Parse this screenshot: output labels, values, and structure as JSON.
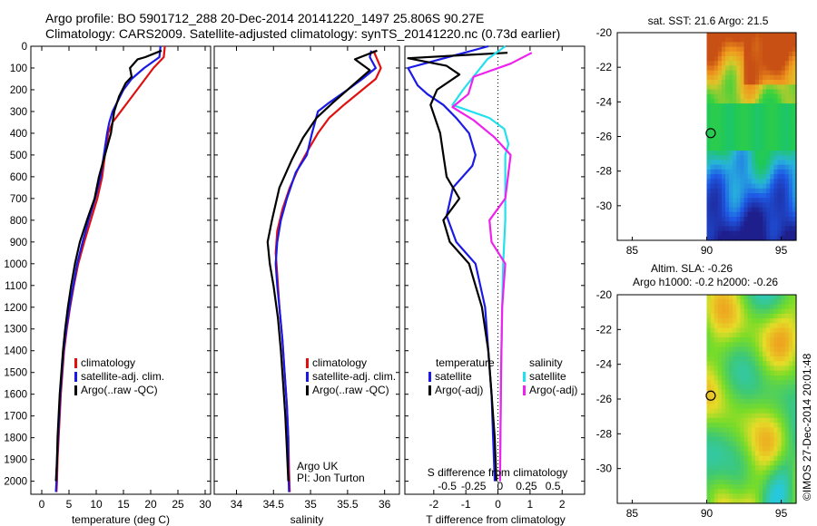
{
  "header": {
    "line1": "Argo profile: BO 5901712_288 20-Dec-2014 20141220_1497 25.806S 90.27E",
    "line2": "Climatology: CARS2009. Satellite-adjusted climatology: synTS_20141220.nc (0.73d earlier)"
  },
  "credit": "©IMOS 27-Dec-2014 20:01:48",
  "colors": {
    "climatology": "#e01010",
    "satellite": "#1a1ae6",
    "argo": "#000000",
    "satellite_diff": "#22e0ee",
    "argo_diff": "#ee22ee"
  },
  "chart_data": [
    {
      "type": "line",
      "name": "temperature-profile",
      "xlabel": "temperature (deg C)",
      "ylabel": "",
      "xlim": [
        -2,
        31
      ],
      "ylim": [
        2060,
        0
      ],
      "xticks": [
        "0",
        "5",
        "10",
        "15",
        "20",
        "25",
        "30"
      ],
      "yticks": [
        "0",
        "100",
        "200",
        "300",
        "400",
        "500",
        "600",
        "700",
        "800",
        "900",
        "1000",
        "1100",
        "1200",
        "1300",
        "1400",
        "1500",
        "1600",
        "1700",
        "1800",
        "1900",
        "2000"
      ],
      "legend": [
        "climatology",
        "satellite-adj. clim.",
        "Argo(..raw -QC)"
      ],
      "series": [
        {
          "name": "climatology",
          "points": [
            [
              22.6,
              0
            ],
            [
              22.4,
              50
            ],
            [
              20.5,
              100
            ],
            [
              19,
              150
            ],
            [
              17.5,
              200
            ],
            [
              16,
              250
            ],
            [
              14.5,
              300
            ],
            [
              13,
              350
            ],
            [
              12.2,
              400
            ],
            [
              11.6,
              500
            ],
            [
              11.1,
              600
            ],
            [
              10.2,
              700
            ],
            [
              9,
              800
            ],
            [
              7.8,
              900
            ],
            [
              6.7,
              1000
            ],
            [
              5.9,
              1100
            ],
            [
              5.2,
              1200
            ],
            [
              4.6,
              1300
            ],
            [
              4.1,
              1400
            ],
            [
              3.8,
              1500
            ],
            [
              3.5,
              1600
            ],
            [
              3.3,
              1700
            ],
            [
              3.1,
              1800
            ],
            [
              2.9,
              1900
            ],
            [
              2.8,
              2000
            ],
            [
              2.7,
              2050
            ]
          ]
        },
        {
          "name": "satellite-adj. clim.",
          "points": [
            [
              21.8,
              0
            ],
            [
              21.6,
              50
            ],
            [
              18.8,
              100
            ],
            [
              16.5,
              150
            ],
            [
              15,
              200
            ],
            [
              14,
              250
            ],
            [
              13,
              300
            ],
            [
              12.4,
              350
            ],
            [
              12,
              400
            ],
            [
              11.4,
              500
            ],
            [
              10.8,
              600
            ],
            [
              9.8,
              700
            ],
            [
              8.6,
              800
            ],
            [
              7.5,
              900
            ],
            [
              6.5,
              1000
            ],
            [
              5.8,
              1100
            ],
            [
              5.1,
              1200
            ],
            [
              4.5,
              1300
            ],
            [
              4,
              1400
            ],
            [
              3.7,
              1500
            ],
            [
              3.4,
              1600
            ],
            [
              3.2,
              1700
            ],
            [
              3,
              1800
            ],
            [
              2.8,
              1900
            ],
            [
              2.7,
              2000
            ],
            [
              2.6,
              2050
            ]
          ]
        },
        {
          "name": "Argo(..raw -QC)",
          "points": [
            [
              22,
              20
            ],
            [
              21,
              30
            ],
            [
              19,
              50
            ],
            [
              17.6,
              60
            ],
            [
              16.2,
              100
            ],
            [
              16.5,
              140
            ],
            [
              15.4,
              170
            ],
            [
              14.2,
              230
            ],
            [
              13.3,
              300
            ],
            [
              12.7,
              400
            ],
            [
              11.6,
              500
            ],
            [
              10.5,
              600
            ],
            [
              9.7,
              700
            ],
            [
              8.3,
              800
            ],
            [
              7,
              900
            ],
            [
              6.1,
              1000
            ],
            [
              5.4,
              1100
            ],
            [
              4.8,
              1200
            ],
            [
              4.3,
              1300
            ],
            [
              3.9,
              1400
            ],
            [
              3.6,
              1500
            ],
            [
              3.3,
              1600
            ],
            [
              3.1,
              1700
            ],
            [
              2.9,
              1800
            ],
            [
              2.8,
              1900
            ],
            [
              2.6,
              2000
            ]
          ]
        }
      ]
    },
    {
      "type": "line",
      "name": "salinity-profile",
      "xlabel": "salinity",
      "xlim": [
        33.7,
        36.2
      ],
      "ylim": [
        2060,
        0
      ],
      "xticks": [
        "34",
        "34.5",
        "35",
        "35.5",
        "36"
      ],
      "legend": [
        "climatology",
        "satellite-adj. clim.",
        "Argo(..raw -QC)"
      ],
      "annotation": [
        "Argo UK",
        "PI: Jon Turton"
      ],
      "series": [
        {
          "name": "climatology",
          "points": [
            [
              35.85,
              20
            ],
            [
              35.9,
              60
            ],
            [
              35.95,
              100
            ],
            [
              35.88,
              150
            ],
            [
              35.7,
              200
            ],
            [
              35.45,
              270
            ],
            [
              35.25,
              330
            ],
            [
              35.1,
              400
            ],
            [
              34.98,
              470
            ],
            [
              34.85,
              550
            ],
            [
              34.72,
              650
            ],
            [
              34.62,
              750
            ],
            [
              34.55,
              850
            ],
            [
              34.53,
              950
            ],
            [
              34.55,
              1050
            ],
            [
              34.58,
              1200
            ],
            [
              34.62,
              1350
            ],
            [
              34.65,
              1500
            ],
            [
              34.68,
              1650
            ],
            [
              34.7,
              1800
            ],
            [
              34.71,
              1950
            ],
            [
              34.72,
              2050
            ]
          ]
        },
        {
          "name": "satellite-adj. clim.",
          "points": [
            [
              35.82,
              20
            ],
            [
              35.8,
              50
            ],
            [
              35.88,
              100
            ],
            [
              35.7,
              150
            ],
            [
              35.5,
              200
            ],
            [
              35.25,
              260
            ],
            [
              35.1,
              300
            ],
            [
              35.02,
              400
            ],
            [
              34.95,
              500
            ],
            [
              34.8,
              580
            ],
            [
              34.68,
              700
            ],
            [
              34.6,
              800
            ],
            [
              34.55,
              900
            ],
            [
              34.53,
              1000
            ],
            [
              34.55,
              1100
            ],
            [
              34.58,
              1200
            ],
            [
              34.62,
              1350
            ],
            [
              34.65,
              1500
            ],
            [
              34.68,
              1650
            ],
            [
              34.7,
              1800
            ],
            [
              34.7,
              1950
            ],
            [
              34.71,
              2050
            ]
          ]
        },
        {
          "name": "Argo(..raw -QC)",
          "points": [
            [
              35.9,
              20
            ],
            [
              35.6,
              60
            ],
            [
              35.8,
              110
            ],
            [
              35.6,
              170
            ],
            [
              35.3,
              260
            ],
            [
              35.08,
              330
            ],
            [
              34.9,
              420
            ],
            [
              34.75,
              520
            ],
            [
              34.58,
              650
            ],
            [
              34.48,
              800
            ],
            [
              34.42,
              900
            ],
            [
              34.45,
              1000
            ],
            [
              34.5,
              1100
            ],
            [
              34.56,
              1250
            ],
            [
              34.6,
              1400
            ],
            [
              34.63,
              1550
            ],
            [
              34.66,
              1700
            ],
            [
              34.68,
              1850
            ],
            [
              34.7,
              2000
            ]
          ]
        }
      ]
    },
    {
      "type": "line",
      "name": "difference-from-climatology",
      "xlabel": "T difference from climatology",
      "xlabel2": "S difference from climatology",
      "xlim": [
        -2.9,
        2.7
      ],
      "xticks": [
        "-2",
        "-1",
        "0",
        "1",
        "2"
      ],
      "xlim2": [
        -0.9,
        0.8
      ],
      "xticks2": [
        "-0.5",
        "-0.25",
        "0",
        "0.25",
        "0.5"
      ],
      "ylim": [
        2060,
        0
      ],
      "legend_temperature": [
        "temperature",
        "satellite",
        "Argo(-adj)"
      ],
      "legend_salinity": [
        "salinity",
        "satellite",
        "Argo(-adj)"
      ],
      "series": [
        {
          "name": "temperature satellite",
          "points": [
            [
              -0.3,
              0
            ],
            [
              -1.3,
              40
            ],
            [
              -2.3,
              80
            ],
            [
              -2.8,
              100
            ],
            [
              -2.5,
              180
            ],
            [
              -2.2,
              220
            ],
            [
              -1.7,
              270
            ],
            [
              -1.3,
              330
            ],
            [
              -0.9,
              400
            ],
            [
              -0.7,
              500
            ],
            [
              -0.8,
              550
            ],
            [
              -1.4,
              650
            ],
            [
              -1.6,
              780
            ],
            [
              -1.3,
              900
            ],
            [
              -0.7,
              1000
            ],
            [
              -0.4,
              1200
            ],
            [
              -0.3,
              1400
            ],
            [
              -0.2,
              1600
            ],
            [
              -0.15,
              1800
            ],
            [
              -0.1,
              2000
            ]
          ]
        },
        {
          "name": "temperature Argo(-adj)",
          "points": [
            [
              0.3,
              30
            ],
            [
              -1,
              40
            ],
            [
              -2.8,
              55
            ],
            [
              -1.6,
              90
            ],
            [
              -1.2,
              130
            ],
            [
              -1.9,
              200
            ],
            [
              -2.1,
              270
            ],
            [
              -1.8,
              400
            ],
            [
              -1.7,
              500
            ],
            [
              -1.6,
              600
            ],
            [
              -1.2,
              700
            ],
            [
              -1.7,
              800
            ],
            [
              -1.5,
              900
            ],
            [
              -0.9,
              1000
            ],
            [
              -0.5,
              1200
            ],
            [
              -0.3,
              1400
            ],
            [
              -0.2,
              1600
            ],
            [
              -0.1,
              1800
            ],
            [
              -0.05,
              2000
            ]
          ]
        },
        {
          "name": "salinity satellite",
          "points": [
            [
              0.05,
              0
            ],
            [
              -0.12,
              60
            ],
            [
              -0.35,
              200
            ],
            [
              -0.45,
              270
            ],
            [
              -0.1,
              330
            ],
            [
              0.04,
              380
            ],
            [
              0.08,
              450
            ],
            [
              0.05,
              500
            ],
            [
              0.05,
              800
            ],
            [
              0.03,
              1000
            ],
            [
              0.02,
              1200
            ],
            [
              0.01,
              1500
            ],
            [
              0.0,
              2000
            ]
          ]
        },
        {
          "name": "salinity Argo(-adj)",
          "points": [
            [
              0.3,
              30
            ],
            [
              0.1,
              80
            ],
            [
              -0.25,
              140
            ],
            [
              -0.3,
              220
            ],
            [
              -0.45,
              280
            ],
            [
              -0.25,
              340
            ],
            [
              -0.05,
              420
            ],
            [
              0.1,
              500
            ],
            [
              0.05,
              700
            ],
            [
              -0.1,
              800
            ],
            [
              -0.08,
              900
            ],
            [
              0.05,
              1000
            ],
            [
              0.02,
              1200
            ],
            [
              0.01,
              1500
            ],
            [
              0.0,
              2000
            ]
          ]
        }
      ]
    },
    {
      "type": "heatmap",
      "name": "sat-sst-map",
      "title": "sat. SST: 21.6  Argo: 21.5",
      "xlim": [
        84,
        96
      ],
      "ylim": [
        -32,
        -20
      ],
      "xticks": [
        "85",
        "90",
        "95"
      ],
      "yticks": [
        "-20",
        "-22",
        "-24",
        "-26",
        "-28",
        "-30"
      ],
      "data_lon_start": 90,
      "marker": [
        90.27,
        -25.806
      ]
    },
    {
      "type": "heatmap",
      "name": "altimetry-sla-map",
      "title": "Altim. SLA: -0.26",
      "subtitle": "Argo h1000: -0.2  h2000: -0.26",
      "xlim": [
        84,
        96
      ],
      "ylim": [
        -32,
        -20
      ],
      "xticks": [
        "85",
        "90",
        "95"
      ],
      "yticks": [
        "-20",
        "-22",
        "-24",
        "-26",
        "-28",
        "-30"
      ],
      "data_lon_start": 90,
      "marker": [
        90.27,
        -25.806
      ]
    }
  ]
}
